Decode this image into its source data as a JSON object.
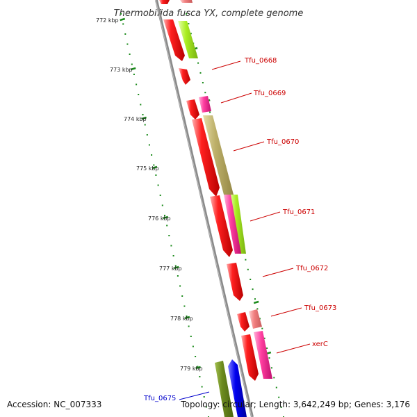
{
  "title": "Thermobifida fusca YX, complete genome",
  "footer": {
    "accession": "Accession: NC_007333",
    "topology": "Topology: circular; Length: 3,642,249 bp; Genes: 3,176"
  },
  "ticks": [
    "772 kbp",
    "773 kbp",
    "774 kbp",
    "775 kbp",
    "776 kbp",
    "777 kbp",
    "778 kbp",
    "779 kbp"
  ],
  "gene_labels": [
    {
      "name": "Tfu_0668",
      "color": "#cc0000"
    },
    {
      "name": "Tfu_0669",
      "color": "#cc0000"
    },
    {
      "name": "Tfu_0670",
      "color": "#cc0000"
    },
    {
      "name": "Tfu_0671",
      "color": "#cc0000"
    },
    {
      "name": "Tfu_0672",
      "color": "#cc0000"
    },
    {
      "name": "Tfu_0673",
      "color": "#cc0000"
    },
    {
      "name": "xerC",
      "color": "#cc0000"
    },
    {
      "name": "Tfu_0675",
      "color": "#0000cc"
    }
  ],
  "colors": {
    "backbone": "#8a8a8a",
    "ruler": "#1a8a1a",
    "cds_red": "#ee0000",
    "cds_pink": "#ff3fa0",
    "cds_salmon": "#f28080",
    "cds_lime": "#aaee22",
    "cds_khaki": "#bdb06a",
    "cds_olive": "#6b8a1e",
    "cds_blue": "#0000ee"
  }
}
